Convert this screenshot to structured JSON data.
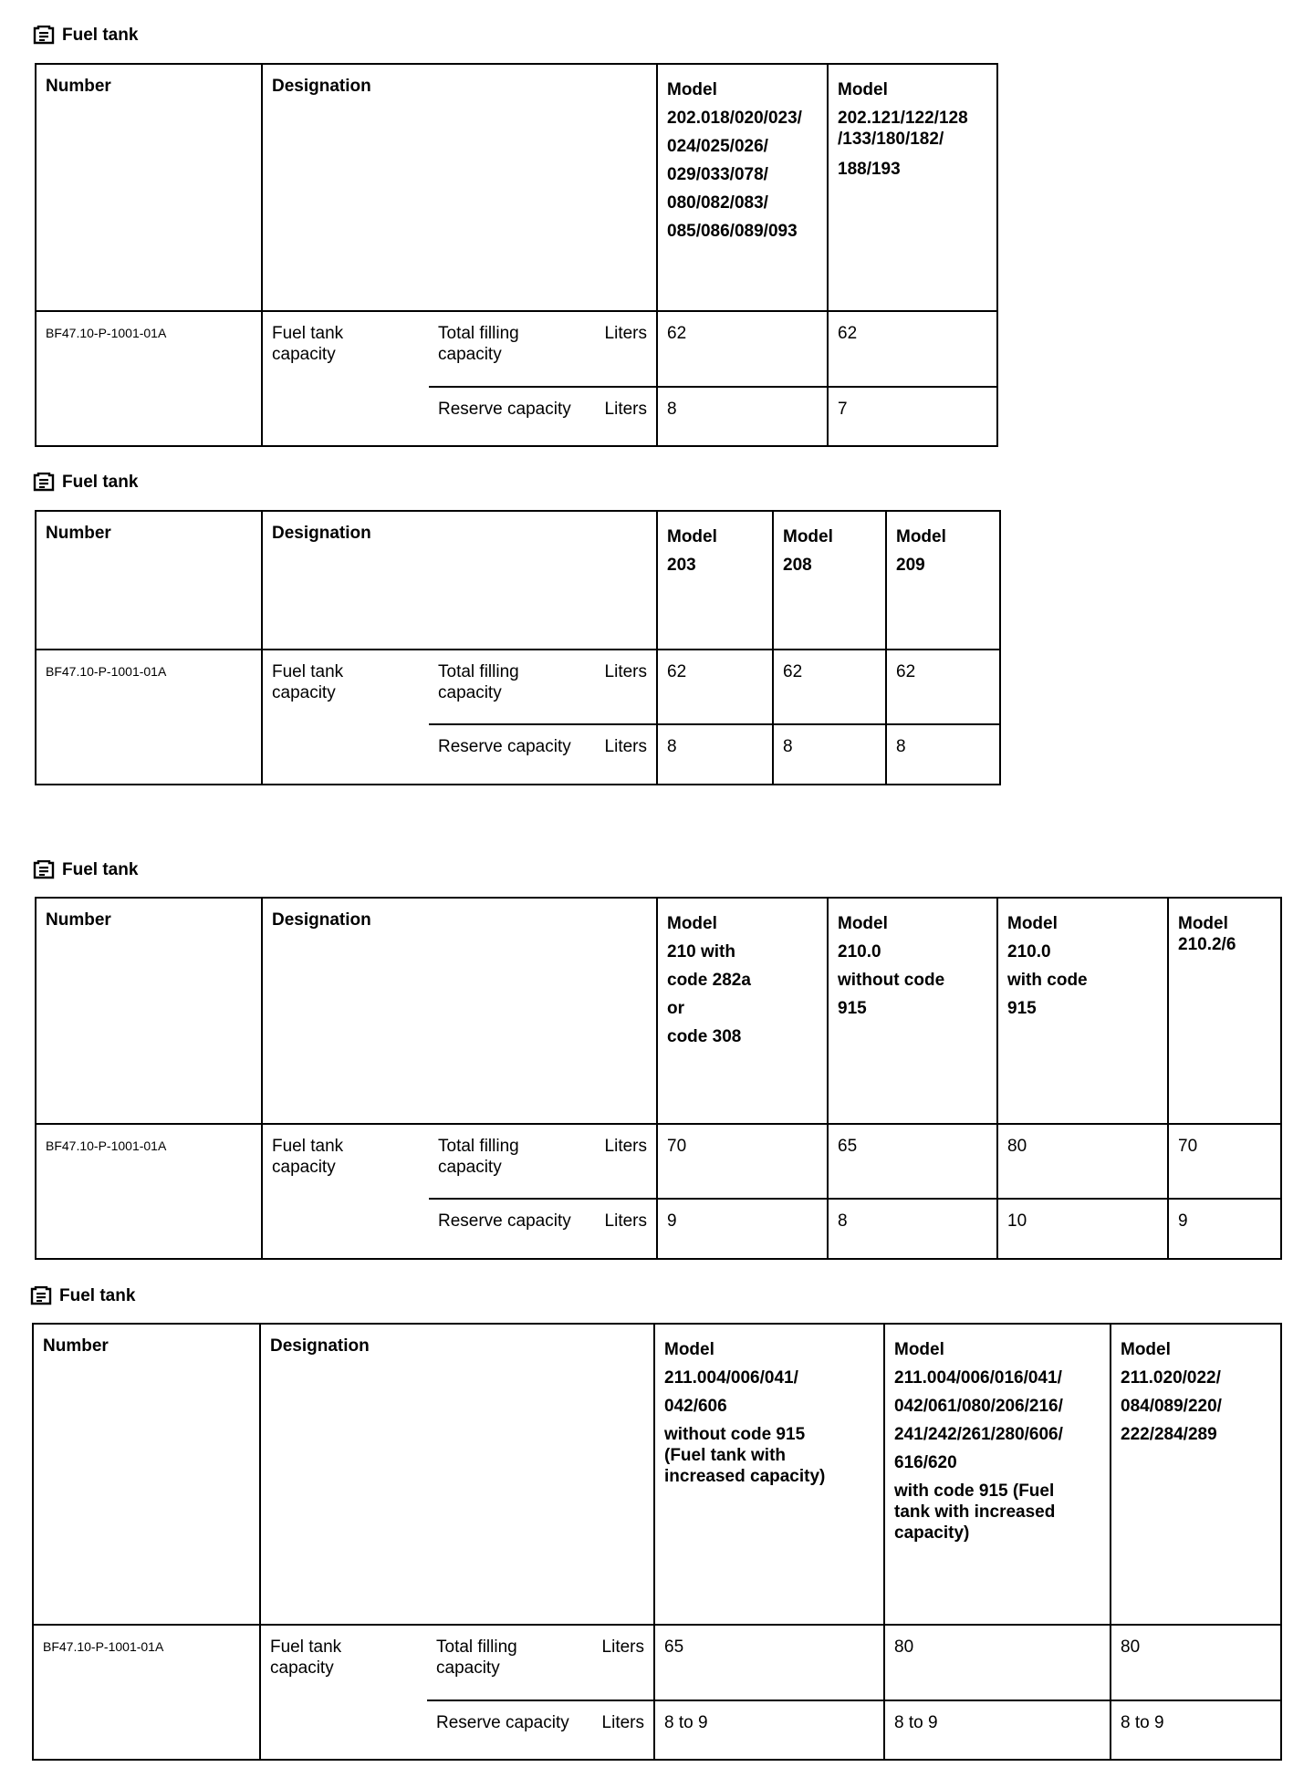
{
  "tables": [
    {
      "title": "Fuel tank",
      "header": {
        "number": "Number",
        "designation": "Designation"
      },
      "models": [
        {
          "lines": [
            "Model",
            "202.018/020/023/",
            "024/025/026/",
            "029/033/078/",
            "080/082/083/",
            "085/086/089/093"
          ]
        },
        {
          "lines": [
            "Model",
            "202.121/122/128\n/133/180/182/",
            "188/193"
          ]
        }
      ],
      "number": "BF47.10-P-1001-01A",
      "designation": "Fuel tank capacity",
      "rows": [
        {
          "label": "Total filling capacity",
          "unit": "Liters",
          "values": [
            "62",
            "62"
          ]
        },
        {
          "label": "Reserve capacity",
          "unit": "Liters",
          "values": [
            "8",
            "7"
          ]
        }
      ]
    },
    {
      "title": "Fuel tank",
      "header": {
        "number": "Number",
        "designation": "Designation"
      },
      "models": [
        {
          "lines": [
            "Model",
            "203"
          ]
        },
        {
          "lines": [
            "Model",
            "208"
          ]
        },
        {
          "lines": [
            "Model",
            "209"
          ]
        }
      ],
      "number": "BF47.10-P-1001-01A",
      "designation": "Fuel tank capacity",
      "rows": [
        {
          "label": "Total filling capacity",
          "unit": "Liters",
          "values": [
            "62",
            "62",
            "62"
          ]
        },
        {
          "label": "Reserve capacity",
          "unit": "Liters",
          "values": [
            "8",
            "8",
            "8"
          ]
        }
      ]
    },
    {
      "title": "Fuel tank",
      "header": {
        "number": "Number",
        "designation": "Designation"
      },
      "models": [
        {
          "lines": [
            "Model",
            "210 with",
            "code 282a",
            "or",
            "code 308"
          ]
        },
        {
          "lines": [
            "Model",
            "210.0",
            "without code",
            "915"
          ]
        },
        {
          "lines": [
            "Model",
            "210.0",
            "with code",
            "915"
          ]
        },
        {
          "lines": [
            "Model\n210.2/6"
          ]
        }
      ],
      "number": "BF47.10-P-1001-01A",
      "designation": "Fuel tank capacity",
      "rows": [
        {
          "label": "Total filling capacity",
          "unit": "Liters",
          "values": [
            "70",
            "65",
            "80",
            "70"
          ]
        },
        {
          "label": "Reserve capacity",
          "unit": "Liters",
          "values": [
            "9",
            "8",
            "10",
            "9"
          ]
        }
      ]
    },
    {
      "title": "Fuel tank",
      "header": {
        "number": "Number",
        "designation": "Designation"
      },
      "models": [
        {
          "lines": [
            "Model",
            "211.004/006/041/",
            "042/606",
            "without code 915\n(Fuel tank with\nincreased capacity)"
          ]
        },
        {
          "lines": [
            "Model",
            "211.004/006/016/041/",
            "042/061/080/206/216/",
            "241/242/261/280/606/",
            "616/620",
            "with code 915 (Fuel\ntank with increased\ncapacity)"
          ]
        },
        {
          "lines": [
            "Model",
            "211.020/022/",
            "084/089/220/",
            "222/284/289"
          ]
        }
      ],
      "number": "BF47.10-P-1001-01A",
      "designation": "Fuel tank capacity",
      "rows": [
        {
          "label": "Total filling capacity",
          "unit": "Liters",
          "values": [
            "65",
            "80",
            "80"
          ]
        },
        {
          "label": "Reserve capacity",
          "unit": "Liters",
          "values": [
            "8 to 9",
            "8 to 9",
            "8 to 9"
          ]
        }
      ]
    }
  ]
}
